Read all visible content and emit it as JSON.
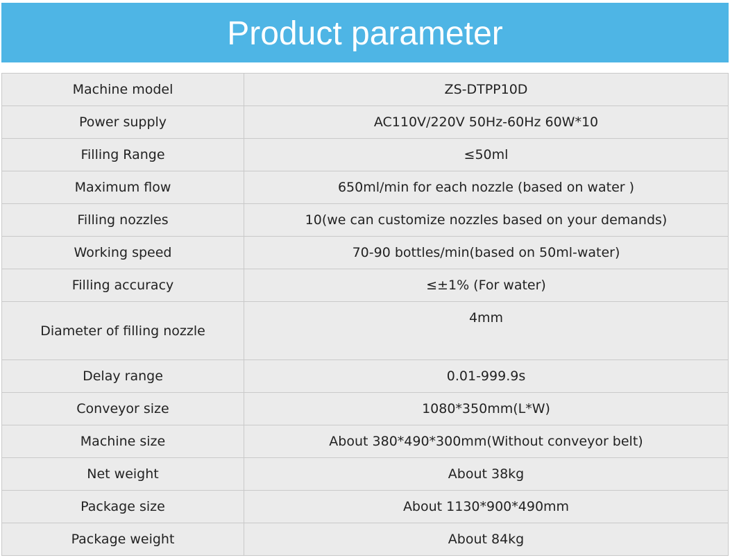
{
  "header": {
    "title": "Product parameter"
  },
  "table": {
    "rows": [
      [
        "Machine model",
        "ZS-DTPP10D"
      ],
      [
        "Power supply",
        "AC110V/220V 50Hz-60Hz 60W*10"
      ],
      [
        "Filling Range",
        "≤50ml"
      ],
      [
        "Maximum flow",
        "650ml/min for each nozzle (based on water )"
      ],
      [
        "Filling nozzles",
        "10(we can customize nozzles based on your demands)"
      ],
      [
        "Working speed",
        "70-90 bottles/min(based on 50ml-water)"
      ],
      [
        "Filling accuracy",
        "≤±1% (For water)"
      ],
      [
        "Diameter of filling nozzle",
        "4mm"
      ],
      [
        "Delay range",
        "0.01-999.9s"
      ],
      [
        "Conveyor size",
        "1080*350mm(L*W)"
      ],
      [
        "Machine size",
        "About 380*490*300mm(Without conveyor belt)"
      ],
      [
        "Net weight",
        "About 38kg"
      ],
      [
        "Package size",
        "About 1130*900*490mm"
      ],
      [
        "Package weight",
        "About 84kg"
      ]
    ]
  }
}
